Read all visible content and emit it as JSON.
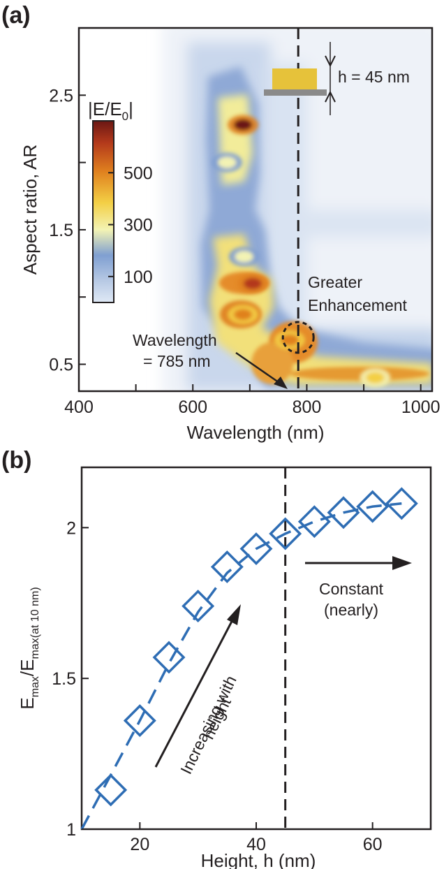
{
  "colors": {
    "ink": "#231f20",
    "series": "#2e6db4",
    "bg_blue": "#eef2f8"
  },
  "chart_data": [
    {
      "type": "heatmap",
      "panel_label": "(a)",
      "xlabel": "Wavelength (nm)",
      "ylabel": "Aspect ratio, AR",
      "xlim": [
        400,
        1020
      ],
      "ylim": [
        0.3,
        3.0
      ],
      "xticks": [
        400,
        500,
        600,
        700,
        800,
        900,
        1000
      ],
      "xtick_labels": [
        "400",
        "",
        "600",
        "",
        "800",
        "",
        "1000"
      ],
      "yticks": [
        0.5,
        1.0,
        1.5,
        2.0,
        2.5
      ],
      "ytick_labels": [
        "0.5",
        "",
        "1.5",
        "",
        "2.5"
      ],
      "colorbar": {
        "label_main": "|E/E",
        "label_sub": "0",
        "label_end": "|",
        "range": [
          0,
          700
        ],
        "ticks": [
          100,
          300,
          500
        ],
        "tick_labels": [
          "100",
          "300",
          "500"
        ]
      },
      "hotspots": [
        {
          "x": 688,
          "y": 2.28,
          "value": 700
        },
        {
          "x": 705,
          "y": 1.1,
          "value": 620
        },
        {
          "x": 688,
          "y": 0.87,
          "value": 560
        },
        {
          "x": 770,
          "y": 0.68,
          "value": 520
        },
        {
          "x": 920,
          "y": 0.4,
          "value": 470
        },
        {
          "x": 690,
          "y": 1.3,
          "value": 340
        },
        {
          "x": 660,
          "y": 2.0,
          "value": 280
        }
      ],
      "reference_wavelength": 785,
      "annotations": {
        "height_label": "h = 45 nm",
        "greater_1": "Greater",
        "greater_2": "Enhancement",
        "wl_1": "Wavelength",
        "wl_2": "= 785 nm"
      }
    },
    {
      "type": "scatter",
      "panel_label": "(b)",
      "xlabel": "Height, h (nm)",
      "ylabel_main": "E",
      "ylabel_sub1": "max",
      "ylabel_mid": "/E",
      "ylabel_sub2": "max(at 10 nm)",
      "xlim": [
        10,
        70
      ],
      "ylim": [
        1,
        2.2
      ],
      "xticks": [
        20,
        40,
        60
      ],
      "xtick_labels": [
        "20",
        "40",
        "60"
      ],
      "yticks": [
        1,
        1.5,
        2
      ],
      "ytick_labels": [
        "1",
        "1.5",
        "2"
      ],
      "series": [
        {
          "x": [
            15,
            20,
            25,
            30,
            35,
            40,
            45,
            50,
            55,
            60,
            65
          ],
          "values": [
            1.13,
            1.36,
            1.57,
            1.74,
            1.87,
            1.93,
            1.98,
            2.02,
            2.05,
            2.07,
            2.08
          ]
        }
      ],
      "fit_line": {
        "x": [
          10,
          15,
          20,
          25,
          30,
          35,
          40,
          45,
          50,
          55,
          60,
          65
        ],
        "values": [
          1.0,
          1.18,
          1.36,
          1.55,
          1.72,
          1.85,
          1.93,
          1.98,
          2.02,
          2.05,
          2.07,
          2.08
        ]
      },
      "reference_height": 45,
      "annotations": {
        "incr_1": "Increasing with",
        "incr_2": "height",
        "const_1": "Constant",
        "const_2": "(nearly)"
      }
    }
  ]
}
